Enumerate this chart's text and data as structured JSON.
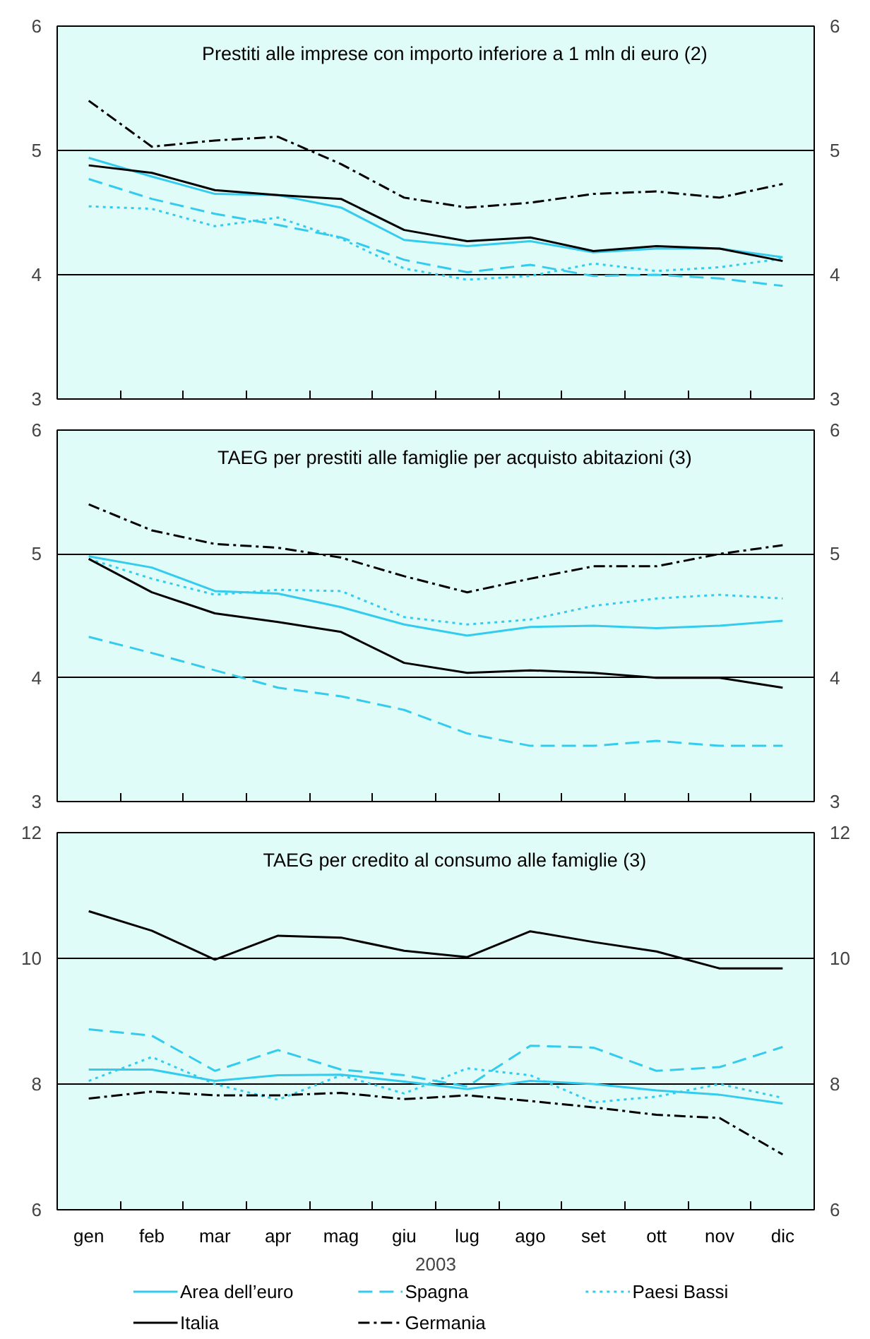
{
  "chart_data": [
    {
      "type": "line",
      "title": "Prestiti alle imprese con importo inferiore a 1 mln di euro (2)",
      "categories": [
        null,
        null,
        null,
        null,
        null,
        null,
        null,
        null,
        null,
        null,
        null,
        null
      ],
      "ylim": [
        3,
        6
      ],
      "yticks": [
        3,
        4,
        5,
        6
      ],
      "y2lim": [
        3,
        6
      ],
      "y2ticks": [
        3,
        4,
        5,
        6
      ],
      "grid": "y",
      "tick_labels": "y",
      "legend": false,
      "series": [
        {
          "color": "#33ccee",
          "line_style": "solid",
          "values": [
            4.94,
            4.79,
            4.65,
            4.64,
            4.54,
            4.28,
            4.23,
            4.27,
            4.18,
            4.21,
            4.21,
            4.14
          ]
        },
        {
          "color": "#33ccee",
          "line_style": "dashed",
          "values": [
            4.77,
            4.61,
            4.49,
            4.4,
            4.3,
            4.12,
            4.02,
            4.08,
            3.99,
            4.0,
            3.97,
            3.91
          ]
        },
        {
          "color": "#33ccee",
          "line_style": "dotted",
          "values": [
            4.55,
            4.53,
            4.39,
            4.46,
            4.29,
            4.05,
            3.96,
            3.99,
            4.09,
            4.03,
            4.06,
            4.13
          ]
        },
        {
          "color": "#000000",
          "line_style": "solid",
          "values": [
            4.88,
            4.82,
            4.68,
            4.64,
            4.61,
            4.36,
            4.27,
            4.3,
            4.19,
            4.23,
            4.21,
            4.11
          ]
        },
        {
          "color": "#000000",
          "line_style": "dashdot",
          "values": [
            5.4,
            5.03,
            5.08,
            5.11,
            4.89,
            4.62,
            4.54,
            4.58,
            4.65,
            4.67,
            4.62,
            4.73
          ]
        }
      ]
    },
    {
      "type": "line",
      "title": "TAEG per prestiti alle famiglie per acquisto abitazioni (3)",
      "categories": [
        null,
        null,
        null,
        null,
        null,
        null,
        null,
        null,
        null,
        null,
        null,
        null
      ],
      "ylim": [
        3,
        6
      ],
      "yticks": [
        3,
        4,
        5,
        6
      ],
      "y2lim": [
        3,
        6
      ],
      "y2ticks": [
        3,
        4,
        5,
        6
      ],
      "grid": "y",
      "tick_labels": "y",
      "legend": false,
      "series": [
        {
          "color": "#33ccee",
          "line_style": "solid",
          "values": [
            4.98,
            4.89,
            4.7,
            4.68,
            4.57,
            4.43,
            4.34,
            4.41,
            4.42,
            4.4,
            4.42,
            4.46
          ]
        },
        {
          "color": "#33ccee",
          "line_style": "dashed",
          "values": [
            4.33,
            4.2,
            4.06,
            3.92,
            3.85,
            3.74,
            3.55,
            3.45,
            3.45,
            3.49,
            3.45,
            3.45
          ]
        },
        {
          "color": "#33ccee",
          "line_style": "dotted",
          "values": [
            4.96,
            4.8,
            4.67,
            4.71,
            4.7,
            4.49,
            4.43,
            4.47,
            4.58,
            4.64,
            4.67,
            4.64
          ]
        },
        {
          "color": "#000000",
          "line_style": "solid",
          "values": [
            4.96,
            4.69,
            4.52,
            4.45,
            4.37,
            4.12,
            4.04,
            4.06,
            4.04,
            4.0,
            4.0,
            3.92
          ]
        },
        {
          "color": "#000000",
          "line_style": "dashdot",
          "values": [
            5.4,
            5.19,
            5.08,
            5.05,
            4.97,
            4.82,
            4.69,
            4.8,
            4.9,
            4.9,
            5.0,
            5.07
          ]
        }
      ]
    },
    {
      "type": "line",
      "title": "TAEG per credito al consumo alle famiglie (3)",
      "xlabel": "2003",
      "categories": [
        "gen",
        "feb",
        "mar",
        "apr",
        "mag",
        "giu",
        "lug",
        "ago",
        "set",
        "ott",
        "nov",
        "dic"
      ],
      "ylim": [
        6,
        12
      ],
      "yticks": [
        6,
        8,
        10,
        12
      ],
      "y2lim": [
        6,
        12
      ],
      "y2ticks": [
        6,
        8,
        10,
        12
      ],
      "grid": "y",
      "legend": "bottom",
      "series": [
        {
          "name": "Area dell’euro",
          "color": "#33ccee",
          "line_style": "solid",
          "values": [
            8.23,
            8.23,
            8.05,
            8.14,
            8.15,
            8.04,
            7.92,
            8.05,
            8.0,
            7.9,
            7.83,
            7.69
          ]
        },
        {
          "name": "Spagna",
          "color": "#33ccee",
          "line_style": "dashed",
          "values": [
            8.87,
            8.77,
            8.21,
            8.54,
            8.23,
            8.14,
            7.96,
            8.61,
            8.58,
            8.21,
            8.27,
            8.59
          ]
        },
        {
          "name": "Paesi Bassi",
          "color": "#33ccee",
          "line_style": "dotted",
          "values": [
            8.05,
            8.43,
            8.0,
            7.75,
            8.14,
            7.85,
            8.25,
            8.14,
            7.71,
            7.8,
            8.0,
            7.78
          ]
        },
        {
          "name": "Italia",
          "color": "#000000",
          "line_style": "solid",
          "values": [
            10.75,
            10.44,
            9.98,
            10.36,
            10.33,
            10.12,
            10.02,
            10.43,
            10.26,
            10.11,
            9.84,
            9.84
          ]
        },
        {
          "name": "Germania",
          "color": "#000000",
          "line_style": "dashdot",
          "values": [
            7.77,
            7.88,
            7.82,
            7.82,
            7.86,
            7.76,
            7.82,
            7.73,
            7.63,
            7.51,
            7.46,
            6.88
          ]
        }
      ]
    }
  ]
}
